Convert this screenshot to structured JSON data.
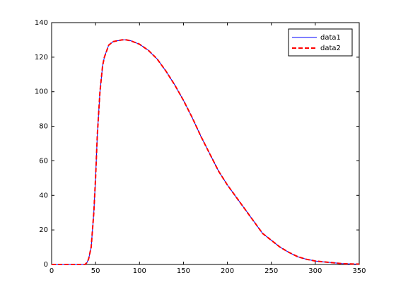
{
  "chart_data": {
    "type": "line",
    "x": [
      0,
      10,
      20,
      30,
      38,
      40,
      42,
      45,
      48,
      50,
      52,
      55,
      58,
      60,
      65,
      70,
      75,
      80,
      85,
      90,
      100,
      110,
      120,
      130,
      140,
      150,
      160,
      170,
      180,
      190,
      200,
      210,
      220,
      230,
      240,
      250,
      260,
      270,
      280,
      290,
      300,
      310,
      320,
      330,
      340,
      350
    ],
    "series": [
      {
        "name": "data1",
        "color": "#0000ff",
        "dash": false,
        "values": [
          0,
          0,
          0,
          0,
          0,
          1,
          3,
          10,
          30,
          50,
          75,
          100,
          115,
          120,
          127,
          129,
          129.5,
          130,
          130,
          129.5,
          127.5,
          124,
          119,
          112,
          104,
          95,
          85,
          74,
          64,
          54,
          46,
          39,
          32,
          25,
          18,
          14,
          10,
          7,
          4.5,
          3,
          2,
          1.5,
          1,
          0.5,
          0.3,
          0.2
        ]
      },
      {
        "name": "data2",
        "color": "#ff0000",
        "dash": true,
        "values": [
          0,
          0,
          0,
          0,
          0,
          1,
          3,
          10,
          30,
          50,
          75,
          100,
          115,
          120,
          127,
          129,
          129.5,
          130,
          130,
          129.5,
          127.5,
          124,
          119,
          112,
          104,
          95,
          85,
          74,
          64,
          54,
          46,
          39,
          32,
          25,
          18,
          14,
          10,
          7,
          4.5,
          3,
          2,
          1.5,
          1,
          0.5,
          0.3,
          0.2
        ]
      }
    ],
    "xlim": [
      0,
      350
    ],
    "xticks": [
      0,
      50,
      100,
      150,
      200,
      250,
      300,
      350
    ],
    "ylim": [
      0,
      140
    ],
    "yticks": [
      0,
      20,
      40,
      60,
      80,
      100,
      120,
      140
    ],
    "grid": false,
    "legend": "northeast"
  }
}
